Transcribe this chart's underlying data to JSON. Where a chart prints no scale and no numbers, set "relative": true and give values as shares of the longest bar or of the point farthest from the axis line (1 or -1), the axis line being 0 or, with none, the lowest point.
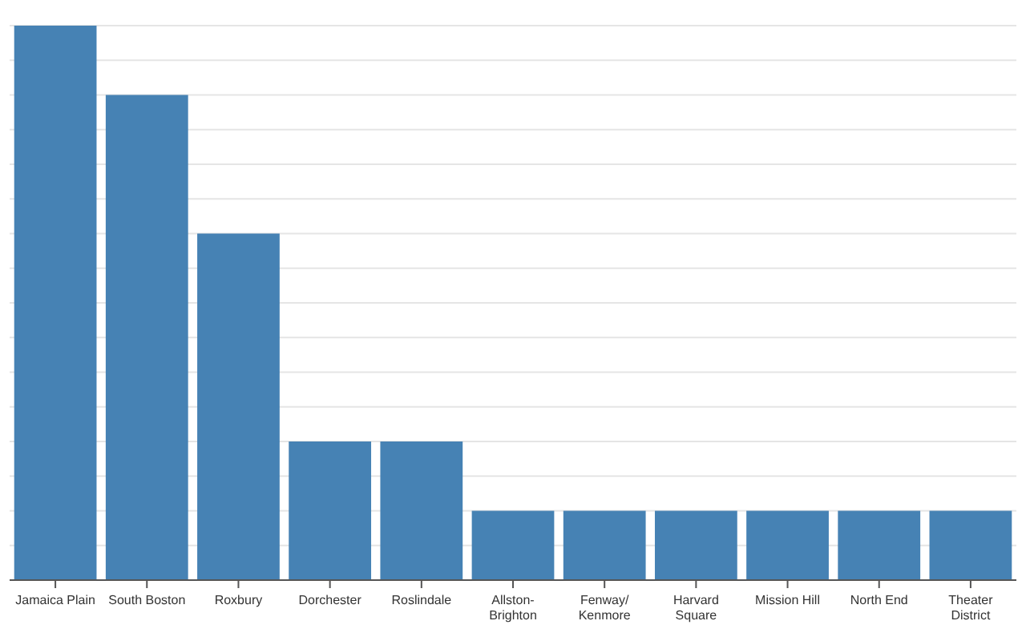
{
  "chart_data": {
    "type": "bar",
    "categories": [
      "Jamaica Plain",
      "South Boston",
      "Roxbury",
      "Dorchester",
      "Roslindale",
      "Allston-Brighton",
      "Fenway/Kenmore",
      "Harvard Square",
      "Mission Hill",
      "North End",
      "Theater District"
    ],
    "values": [
      1,
      0.875,
      0.625,
      0.25,
      0.25,
      0.125,
      0.125,
      0.125,
      0.125,
      0.125,
      0.125
    ],
    "color": "#4682b4",
    "relative": true,
    "grid": "y"
  }
}
